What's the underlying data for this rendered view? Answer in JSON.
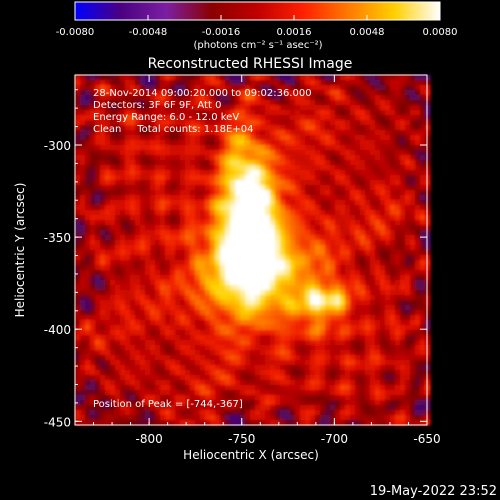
{
  "colors": {
    "background": "#000000",
    "axis": "#ffffff",
    "colormap": [
      "#0000ff",
      "#4b0082",
      "#7b1fa2",
      "#8b0000",
      "#c00000",
      "#ff2000",
      "#ff7a00",
      "#ffd000",
      "#ffffff"
    ]
  },
  "colorbar": {
    "ticks": [
      "-0.0080",
      "-0.0048",
      "-0.0016",
      "0.0016",
      "0.0048",
      "0.0080"
    ],
    "unit_label": "(photons cm⁻² s⁻¹ asec⁻²)",
    "range": [
      -0.008,
      0.008
    ]
  },
  "title": "Reconstructed RHESSI Image",
  "info": {
    "time": "28-Nov-2014 09:00:20.000 to 09:02:36.000",
    "detectors": "Detectors: 3F 6F 9F, Att 0",
    "energy": "Energy Range: 6.0 - 12.0 keV",
    "clean": "Clean     Total counts: 1.18E+04",
    "peak": "Position of Peak = [-744,-367]"
  },
  "axes": {
    "xlabel": "Heliocentric X (arcsec)",
    "ylabel": "Heliocentric Y (arcsec)",
    "xticks": [
      "-800",
      "-750",
      "-700",
      "-650"
    ],
    "yticks": [
      "-300",
      "-350",
      "-400",
      "-450"
    ],
    "xlim": [
      -840,
      -650
    ],
    "ylim": [
      -452,
      -262
    ]
  },
  "peak": {
    "x": -744,
    "y": -367
  },
  "footer": {
    "date": "19-May-2022 23:52"
  }
}
